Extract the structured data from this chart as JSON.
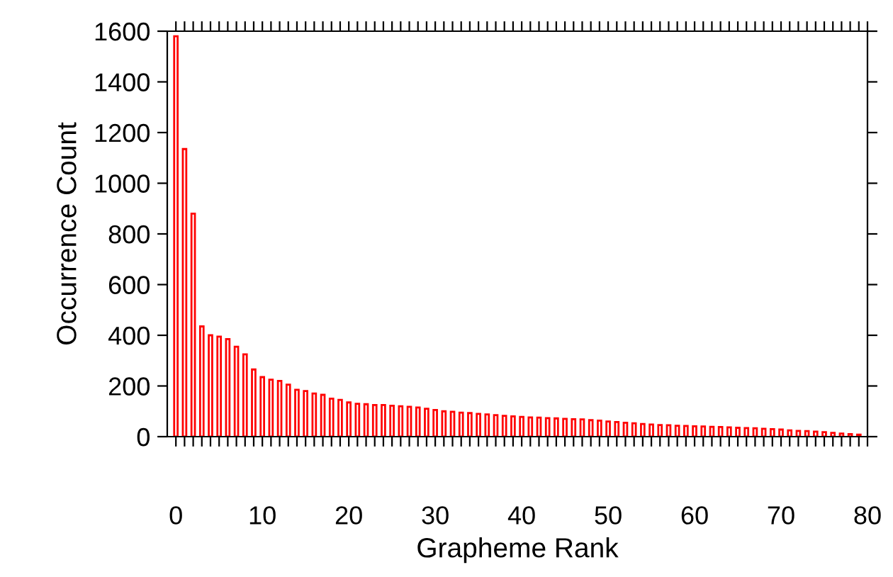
{
  "chart_data": {
    "type": "bar",
    "xlabel": "Grapheme Rank",
    "ylabel": "Occurrence Count",
    "x": [
      0,
      1,
      2,
      3,
      4,
      5,
      6,
      7,
      8,
      9,
      10,
      11,
      12,
      13,
      14,
      15,
      16,
      17,
      18,
      19,
      20,
      21,
      22,
      23,
      24,
      25,
      26,
      27,
      28,
      29,
      30,
      31,
      32,
      33,
      34,
      35,
      36,
      37,
      38,
      39,
      40,
      41,
      42,
      43,
      44,
      45,
      46,
      47,
      48,
      49,
      50,
      51,
      52,
      53,
      54,
      55,
      56,
      57,
      58,
      59,
      60,
      61,
      62,
      63,
      64,
      65,
      66,
      67,
      68,
      69,
      70,
      71,
      72,
      73,
      74,
      75,
      76,
      77,
      78,
      79
    ],
    "values": [
      1580,
      1135,
      880,
      435,
      400,
      395,
      385,
      355,
      325,
      265,
      235,
      225,
      220,
      205,
      185,
      180,
      170,
      165,
      150,
      145,
      135,
      130,
      128,
      125,
      125,
      122,
      120,
      118,
      115,
      110,
      105,
      100,
      98,
      95,
      93,
      90,
      88,
      85,
      82,
      80,
      78,
      76,
      75,
      73,
      72,
      70,
      69,
      68,
      65,
      63,
      60,
      58,
      55,
      53,
      50,
      48,
      46,
      45,
      43,
      42,
      41,
      40,
      39,
      38,
      37,
      35,
      34,
      33,
      31,
      30,
      28,
      25,
      23,
      22,
      20,
      18,
      15,
      12,
      10,
      8
    ],
    "color": "#ff0000",
    "xlim": [
      -1,
      80
    ],
    "ylim": [
      0,
      1600
    ],
    "yticks": [
      0,
      200,
      400,
      600,
      800,
      1000,
      1200,
      1400,
      1600
    ],
    "xticks": [
      0,
      {
        "value": 1,
        "label": null
      },
      {
        "value": 2,
        "label": null
      },
      {
        "value": 3,
        "label": null
      },
      {
        "value": 4,
        "label": null
      },
      {
        "value": 5,
        "label": null
      },
      {
        "value": 6,
        "label": null
      },
      {
        "value": 7,
        "label": null
      },
      {
        "value": 8,
        "label": null
      },
      {
        "value": 9,
        "label": null
      },
      10,
      {
        "value": 11,
        "label": null
      },
      {
        "value": 12,
        "label": null
      },
      {
        "value": 13,
        "label": null
      },
      {
        "value": 14,
        "label": null
      },
      {
        "value": 15,
        "label": null
      },
      {
        "value": 16,
        "label": null
      },
      {
        "value": 17,
        "label": null
      },
      {
        "value": 18,
        "label": null
      },
      {
        "value": 19,
        "label": null
      },
      20,
      {
        "value": 21,
        "label": null
      },
      {
        "value": 22,
        "label": null
      },
      {
        "value": 23,
        "label": null
      },
      {
        "value": 24,
        "label": null
      },
      {
        "value": 25,
        "label": null
      },
      {
        "value": 26,
        "label": null
      },
      {
        "value": 27,
        "label": null
      },
      {
        "value": 28,
        "label": null
      },
      {
        "value": 29,
        "label": null
      },
      30,
      {
        "value": 31,
        "label": null
      },
      {
        "value": 32,
        "label": null
      },
      {
        "value": 33,
        "label": null
      },
      {
        "value": 34,
        "label": null
      },
      {
        "value": 35,
        "label": null
      },
      {
        "value": 36,
        "label": null
      },
      {
        "value": 37,
        "label": null
      },
      {
        "value": 38,
        "label": null
      },
      {
        "value": 39,
        "label": null
      },
      40,
      {
        "value": 41,
        "label": null
      },
      {
        "value": 42,
        "label": null
      },
      {
        "value": 43,
        "label": null
      },
      {
        "value": 44,
        "label": null
      },
      {
        "value": 45,
        "label": null
      },
      {
        "value": 46,
        "label": null
      },
      {
        "value": 47,
        "label": null
      },
      {
        "value": 48,
        "label": null
      },
      {
        "value": 49,
        "label": null
      },
      50,
      {
        "value": 51,
        "label": null
      },
      {
        "value": 52,
        "label": null
      },
      {
        "value": 53,
        "label": null
      },
      {
        "value": 54,
        "label": null
      },
      {
        "value": 55,
        "label": null
      },
      {
        "value": 56,
        "label": null
      },
      {
        "value": 57,
        "label": null
      },
      {
        "value": 58,
        "label": null
      },
      {
        "value": 59,
        "label": null
      },
      60,
      {
        "value": 61,
        "label": null
      },
      {
        "value": 62,
        "label": null
      },
      {
        "value": 63,
        "label": null
      },
      {
        "value": 64,
        "label": null
      },
      {
        "value": 65,
        "label": null
      },
      {
        "value": 66,
        "label": null
      },
      {
        "value": 67,
        "label": null
      },
      {
        "value": 68,
        "label": null
      },
      {
        "value": 69,
        "label": null
      },
      70,
      {
        "value": 71,
        "label": null
      },
      {
        "value": 72,
        "label": null
      },
      {
        "value": 73,
        "label": null
      },
      {
        "value": 74,
        "label": null
      },
      {
        "value": 75,
        "label": null
      },
      {
        "value": 76,
        "label": null
      },
      {
        "value": 77,
        "label": null
      },
      {
        "value": 78,
        "label": null
      },
      {
        "value": 79,
        "label": null
      },
      80
    ],
    "grid": false
  }
}
